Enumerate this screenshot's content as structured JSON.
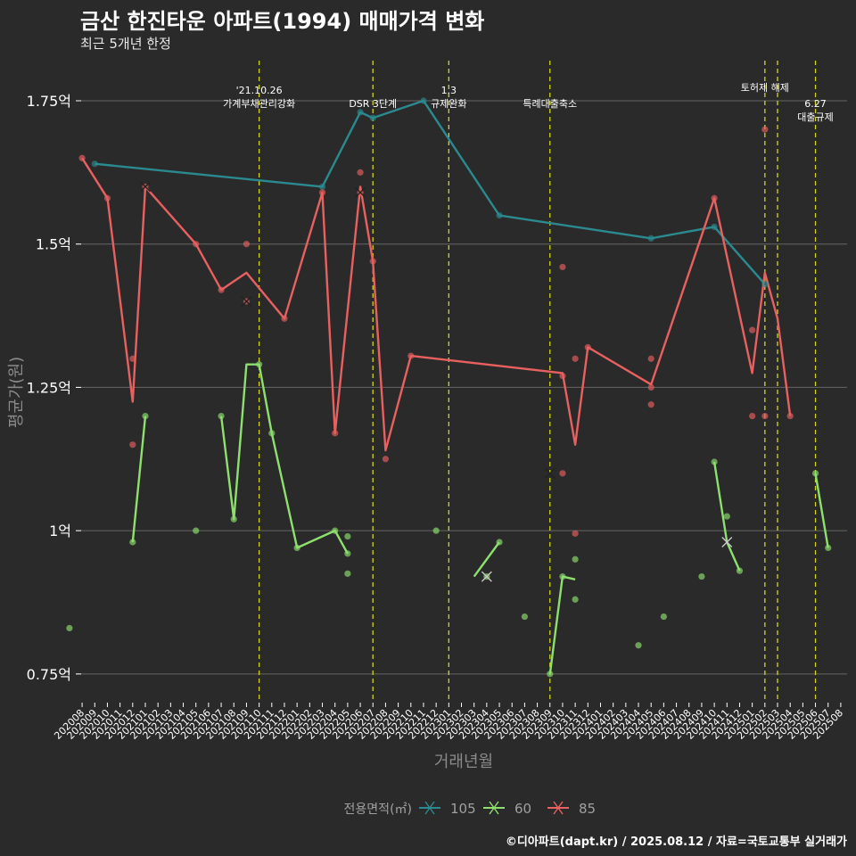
{
  "title": "금산 한진타운 아파트(1994) 매매가격 변화",
  "subtitle": "최근 5개년 한정",
  "caption": "©디아파트(dapt.kr) / 2025.08.12 / 자료=국토교통부 실거래가",
  "chart_data": {
    "type": "line",
    "xlabel": "거래년월",
    "ylabel": "평균가(원)",
    "ylim": [
      0.7,
      1.82
    ],
    "y_ticks": [
      {
        "value": 0.75,
        "label": "0.75억"
      },
      {
        "value": 1.0,
        "label": "1억"
      },
      {
        "value": 1.25,
        "label": "1.25억"
      },
      {
        "value": 1.5,
        "label": "1.5억"
      },
      {
        "value": 1.75,
        "label": "1.75억"
      }
    ],
    "x_categories": [
      "202008",
      "202009",
      "202010",
      "202011",
      "202012",
      "202101",
      "202102",
      "202103",
      "202104",
      "202105",
      "202106",
      "202107",
      "202108",
      "202109",
      "202110",
      "202111",
      "202112",
      "202201",
      "202202",
      "202203",
      "202204",
      "202205",
      "202206",
      "202207",
      "202208",
      "202209",
      "202210",
      "202211",
      "202212",
      "202301",
      "202302",
      "202303",
      "202304",
      "202305",
      "202306",
      "202307",
      "202308",
      "202309",
      "202310",
      "202311",
      "202312",
      "202401",
      "202402",
      "202403",
      "202404",
      "202405",
      "202406",
      "202407",
      "202408",
      "202409",
      "202410",
      "202411",
      "202412",
      "202501",
      "202502",
      "202503",
      "202504",
      "202505",
      "202506",
      "202507",
      "202508"
    ],
    "legend": {
      "title": "전용면적(㎡)",
      "position": "bottom"
    },
    "series": [
      {
        "name": "105",
        "color": "#2a8a8f",
        "line": [
          [
            "202009",
            1.64
          ],
          [
            "202203",
            1.6
          ],
          [
            "202206",
            1.73
          ],
          [
            "202207",
            1.72
          ],
          [
            "202211",
            1.75
          ],
          [
            "202305",
            1.55
          ],
          [
            "202405",
            1.51
          ],
          [
            "202410",
            1.53
          ],
          [
            "202502",
            1.43
          ]
        ],
        "points": [
          [
            "202009",
            1.64
          ],
          [
            "202203",
            1.6
          ],
          [
            "202206",
            1.73
          ],
          [
            "202207",
            1.72
          ],
          [
            "202211",
            1.75
          ],
          [
            "202305",
            1.55
          ],
          [
            "202405",
            1.51
          ],
          [
            "202410",
            1.53
          ],
          [
            "202502",
            1.43
          ]
        ],
        "x_marks": []
      },
      {
        "name": "60",
        "color": "#8ee06e",
        "line": [
          [
            [
              "202012",
              0.98
            ],
            [
              "202101",
              1.2
            ]
          ],
          [
            [
              "202107",
              1.2
            ],
            [
              "202108",
              1.02
            ],
            [
              "202109",
              1.29
            ],
            [
              "202110",
              1.29
            ],
            [
              "202111",
              1.17
            ],
            [
              "202201",
              0.97
            ],
            [
              "202204",
              1.0
            ],
            [
              "202205",
              0.96
            ]
          ],
          [
            [
              "202303",
              0.92
            ],
            [
              "202305",
              0.98
            ]
          ],
          [
            [
              "202309",
              0.75
            ],
            [
              "202310",
              0.92
            ],
            [
              "202311",
              0.915
            ]
          ],
          [
            [
              "202410",
              1.12
            ],
            [
              "202411",
              0.98
            ],
            [
              "202412",
              0.93
            ]
          ],
          [
            [
              "202506",
              1.1
            ],
            [
              "202507",
              0.97
            ]
          ]
        ],
        "points": [
          [
            "202012",
            0.98
          ],
          [
            "202101",
            1.2
          ],
          [
            "202105",
            1.0
          ],
          [
            "202107",
            1.2
          ],
          [
            "202108",
            1.02
          ],
          [
            "202110",
            1.29
          ],
          [
            "202111",
            1.17
          ],
          [
            "202201",
            0.97
          ],
          [
            "202204",
            1.0
          ],
          [
            "202205",
            0.99
          ],
          [
            "202205",
            0.96
          ],
          [
            "202205",
            0.925
          ],
          [
            "202212",
            1.0
          ],
          [
            "202304",
            0.92
          ],
          [
            "202305",
            0.98
          ],
          [
            "202307",
            0.85
          ],
          [
            "202309",
            0.75
          ],
          [
            "202310",
            0.92
          ],
          [
            "202311",
            0.95
          ],
          [
            "202311",
            0.88
          ],
          [
            "202404",
            0.8
          ],
          [
            "202406",
            0.85
          ],
          [
            "202409",
            0.92
          ],
          [
            "202410",
            1.12
          ],
          [
            "202411",
            1.025
          ],
          [
            "202412",
            0.93
          ],
          [
            "202506",
            1.1
          ],
          [
            "202507",
            0.97
          ],
          [
            "202509",
            0.83
          ]
        ],
        "x_marks": [
          [
            "202304",
            0.92
          ],
          [
            "202411",
            0.98
          ]
        ]
      },
      {
        "name": "85",
        "color": "#e8605f",
        "line": [
          [
            "202008",
            1.65
          ],
          [
            "202010",
            1.58
          ],
          [
            "202012",
            1.225
          ],
          [
            "202101",
            1.6
          ],
          [
            "202105",
            1.5
          ],
          [
            "202107",
            1.42
          ],
          [
            "202109",
            1.45
          ],
          [
            "202112",
            1.37
          ],
          [
            "202203",
            1.59
          ],
          [
            "202204",
            1.17
          ],
          [
            "202206",
            1.6
          ],
          [
            "202207",
            1.47
          ],
          [
            "202208",
            1.14
          ],
          [
            "202210",
            1.305
          ],
          [
            "202310",
            1.275
          ],
          [
            "202311",
            1.15
          ],
          [
            "202312",
            1.32
          ],
          [
            "202405",
            1.255
          ],
          [
            "202410",
            1.58
          ],
          [
            "202501",
            1.275
          ],
          [
            "202502",
            1.45
          ],
          [
            "202503",
            1.37
          ],
          [
            "202504",
            1.2
          ]
        ],
        "points": [
          [
            "202008",
            1.65
          ],
          [
            "202010",
            1.58
          ],
          [
            "202012",
            1.3
          ],
          [
            "202012",
            1.15
          ],
          [
            "202101",
            1.6
          ],
          [
            "202105",
            1.5
          ],
          [
            "202107",
            1.42
          ],
          [
            "202109",
            1.5
          ],
          [
            "202109",
            1.4
          ],
          [
            "202112",
            1.37
          ],
          [
            "202203",
            1.59
          ],
          [
            "202204",
            1.17
          ],
          [
            "202206",
            1.625
          ],
          [
            "202206",
            1.59
          ],
          [
            "202207",
            1.47
          ],
          [
            "202208",
            1.125
          ],
          [
            "202210",
            1.305
          ],
          [
            "202310",
            1.46
          ],
          [
            "202310",
            1.27
          ],
          [
            "202310",
            1.1
          ],
          [
            "202311",
            1.3
          ],
          [
            "202311",
            0.995
          ],
          [
            "202312",
            1.32
          ],
          [
            "202405",
            1.3
          ],
          [
            "202405",
            1.25
          ],
          [
            "202405",
            1.22
          ],
          [
            "202410",
            1.58
          ],
          [
            "202501",
            1.35
          ],
          [
            "202501",
            1.2
          ],
          [
            "202502",
            1.7
          ],
          [
            "202502",
            1.2
          ],
          [
            "202504",
            1.2
          ]
        ],
        "x_marks": [
          [
            "202101",
            1.6
          ],
          [
            "202109",
            1.4
          ],
          [
            "202206",
            1.59
          ],
          [
            "202309",
            1.1
          ]
        ]
      }
    ],
    "events": [
      {
        "x": 14.5,
        "label": [
          "'21.10.26",
          "가계부채관리강화"
        ]
      },
      {
        "x": 23.5,
        "label": [
          "DSR 3단계"
        ]
      },
      {
        "x": 29.5,
        "label": [
          "1.3",
          "규제완화"
        ]
      },
      {
        "x": 37.5,
        "label": [
          "특례대출축소"
        ]
      },
      {
        "x": 54.5,
        "label": [
          "토허제 해제"
        ]
      },
      {
        "x": 55.5,
        "label": []
      },
      {
        "x": 58.5,
        "label": [
          "6.27",
          "대출규제"
        ]
      }
    ]
  }
}
